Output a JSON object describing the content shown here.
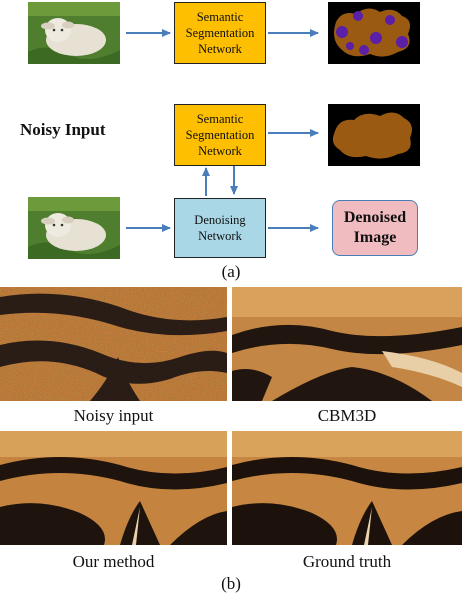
{
  "part_a": {
    "seg_network_label_top": "Semantic\nSegmentation\nNetwork",
    "seg_network_label_mid": "Semantic\nSegmentation\nNetwork",
    "noisy_input_label": "Noisy Input",
    "denoising_network_label": "Denoising\nNetwork",
    "denoised_image_label": "Denoised\nImage",
    "caption": "(a)"
  },
  "part_b": {
    "panels": [
      {
        "label": "Noisy input"
      },
      {
        "label": "CBM3D"
      },
      {
        "label": "Our method"
      },
      {
        "label": "Ground truth"
      }
    ],
    "caption": "(b)"
  },
  "colors": {
    "seg_box": "#fdbf00",
    "den_box": "#a9d7e6",
    "denoised_box": "#f1bcc0",
    "arrow": "#4a7ebb",
    "seg_blob": "#9a5a12",
    "seg_purple": "#5b1fa8"
  }
}
